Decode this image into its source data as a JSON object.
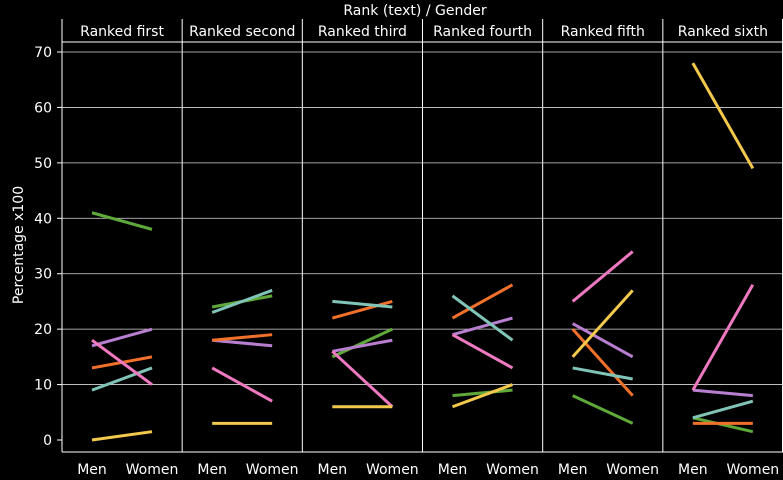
{
  "chart_data": {
    "type": "line",
    "title": "Rank (text)  /  Gender",
    "ylabel": "Percentage x100",
    "ylim": [
      -2,
      72
    ],
    "yticks": [
      0,
      10,
      20,
      30,
      40,
      50,
      60,
      70
    ],
    "x": [
      "Men",
      "Women"
    ],
    "panels": [
      "Ranked first",
      "Ranked second",
      "Ranked third",
      "Ranked fourth",
      "Ranked fifth",
      "Ranked sixth"
    ],
    "grid": true,
    "background": "#000000",
    "series": [
      {
        "color": "#5fa83a",
        "values": [
          [
            41,
            38
          ],
          [
            24,
            26
          ],
          [
            15,
            20
          ],
          [
            8,
            9
          ],
          [
            8,
            3
          ],
          [
            4,
            1.5
          ]
        ]
      },
      {
        "color": "#b87fd0",
        "values": [
          [
            17,
            20
          ],
          [
            18,
            17
          ],
          [
            16,
            18
          ],
          [
            19,
            22
          ],
          [
            21,
            15
          ],
          [
            9,
            8
          ]
        ]
      },
      {
        "color": "#f2712a",
        "values": [
          [
            13,
            15
          ],
          [
            18,
            19
          ],
          [
            22,
            25
          ],
          [
            22,
            28
          ],
          [
            20,
            8
          ],
          [
            3,
            3
          ]
        ]
      },
      {
        "color": "#80c4b8",
        "values": [
          [
            9,
            13
          ],
          [
            23,
            27
          ],
          [
            25,
            24
          ],
          [
            26,
            18
          ],
          [
            13,
            11
          ],
          [
            4,
            7
          ]
        ]
      },
      {
        "color": "#ee79c0",
        "values": [
          [
            18,
            10
          ],
          [
            13,
            7
          ],
          [
            16,
            6
          ],
          [
            19,
            13
          ],
          [
            25,
            34
          ],
          [
            9,
            28
          ]
        ]
      },
      {
        "color": "#f3c94d",
        "values": [
          [
            0,
            1.5
          ],
          [
            3,
            3
          ],
          [
            6,
            6
          ],
          [
            6,
            10
          ],
          [
            15,
            27
          ],
          [
            68,
            49
          ]
        ]
      }
    ]
  }
}
